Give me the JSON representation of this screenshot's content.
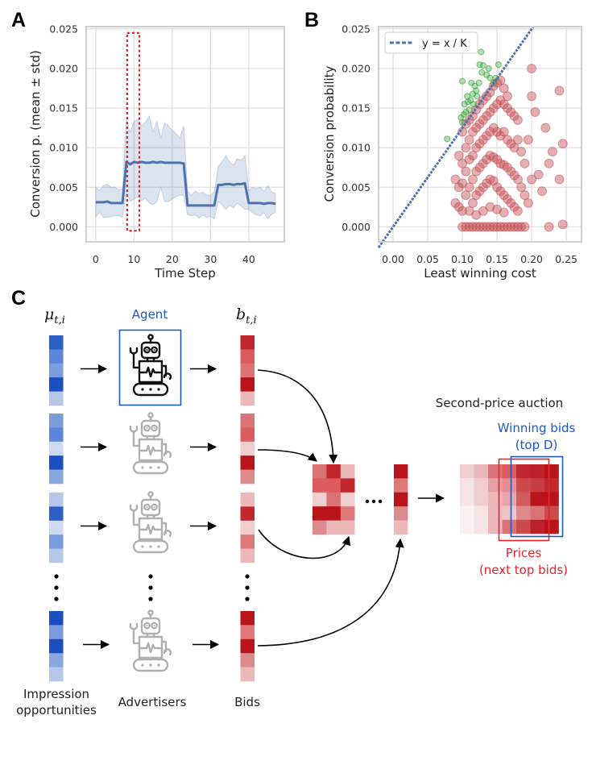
{
  "panel_labels": {
    "a": "A",
    "b": "B",
    "c": "C"
  },
  "chart_data": [
    {
      "type": "line",
      "panel": "A",
      "title": "",
      "xlabel": "Time Step",
      "ylabel": "Conversion p. (mean ± std)",
      "xlim": [
        -2.5,
        49.3
      ],
      "ylim": [
        -0.0019,
        0.0253
      ],
      "xticks": [
        0,
        10,
        20,
        30,
        40
      ],
      "xtick_labels": [
        "0",
        "10",
        "20",
        "30",
        "40"
      ],
      "yticks": [
        0,
        0.005,
        0.01,
        0.015,
        0.02,
        0.025
      ],
      "ytick_labels": [
        "0.000",
        "0.005",
        "0.010",
        "0.015",
        "0.020",
        "0.025"
      ],
      "grid": true,
      "colors": {
        "line": "#4c72b0",
        "band": "#4c72b0",
        "highlight": "#d62728"
      },
      "x": [
        0,
        1,
        2,
        3,
        4,
        5,
        6,
        7,
        8,
        9,
        10,
        11,
        12,
        13,
        14,
        15,
        16,
        17,
        18,
        19,
        20,
        21,
        22,
        23,
        24,
        25,
        26,
        27,
        28,
        29,
        30,
        31,
        32,
        33,
        34,
        35,
        36,
        37,
        38,
        39,
        40,
        41,
        42,
        43,
        44,
        45,
        46,
        47
      ],
      "series": [
        {
          "role": "mean",
          "values": [
            0.0031,
            0.0031,
            0.0031,
            0.0032,
            0.003,
            0.003,
            0.003,
            0.003,
            0.0082,
            0.0079,
            0.0082,
            0.0081,
            0.0082,
            0.0081,
            0.0081,
            0.0082,
            0.0081,
            0.0082,
            0.0081,
            0.0081,
            0.0081,
            0.0081,
            0.0081,
            0.008,
            0.0027,
            0.0027,
            0.0027,
            0.0027,
            0.0027,
            0.0027,
            0.0027,
            0.0027,
            0.0053,
            0.0053,
            0.0054,
            0.0054,
            0.0053,
            0.0054,
            0.0054,
            0.0055,
            0.003,
            0.003,
            0.003,
            0.003,
            0.0029,
            0.003,
            0.003,
            0.0029
          ]
        },
        {
          "role": "upper (mean + std)",
          "values": [
            0.005,
            0.0046,
            0.0052,
            0.0054,
            0.005,
            0.005,
            0.0047,
            0.0048,
            0.0134,
            0.012,
            0.0133,
            0.0136,
            0.0128,
            0.0132,
            0.014,
            0.012,
            0.0133,
            0.0112,
            0.0131,
            0.0128,
            0.0122,
            0.0118,
            0.0112,
            0.0128,
            0.0045,
            0.004,
            0.0045,
            0.0042,
            0.0044,
            0.004,
            0.004,
            0.0044,
            0.0076,
            0.0082,
            0.009,
            0.0082,
            0.0078,
            0.0086,
            0.0084,
            0.009,
            0.0046,
            0.005,
            0.0048,
            0.005,
            0.0045,
            0.0052,
            0.0044,
            0.0042
          ]
        },
        {
          "role": "lower (mean - std)",
          "values": [
            0.0012,
            0.0018,
            0.0012,
            0.0012,
            0.0013,
            0.0014,
            0.0014,
            0.0012,
            0.0045,
            0.0032,
            0.0035,
            0.0038,
            0.0033,
            0.0036,
            0.003,
            0.0028,
            0.0032,
            0.005,
            0.0032,
            0.0032,
            0.0035,
            0.0038,
            0.004,
            0.004,
            0.0015,
            0.0014,
            0.0015,
            0.0011,
            0.0015,
            0.0012,
            0.0013,
            0.001,
            0.0032,
            0.0028,
            0.0022,
            0.0027,
            0.0024,
            0.003,
            0.0026,
            0.0022,
            0.0022,
            0.0018,
            0.0015,
            0.0014,
            0.0018,
            0.001,
            0.0016,
            0.0018
          ]
        }
      ],
      "highlight_box": {
        "x": [
          8.2,
          11.4
        ],
        "y": [
          -0.0005,
          0.0245
        ],
        "style": "dotted"
      }
    },
    {
      "type": "scatter",
      "panel": "B",
      "title": "",
      "xlabel": "Least winning cost",
      "ylabel": "Conversion probability",
      "xlim": [
        -0.021,
        0.272
      ],
      "ylim": [
        -0.0019,
        0.0253
      ],
      "xticks": [
        0,
        0.05,
        0.1,
        0.15,
        0.2,
        0.25
      ],
      "xtick_labels": [
        "0.00",
        "0.05",
        "0.10",
        "0.15",
        "0.20",
        "0.25"
      ],
      "yticks": [
        0,
        0.005,
        0.01,
        0.015,
        0.02,
        0.025
      ],
      "ytick_labels": [
        "0.000",
        "0.005",
        "0.010",
        "0.015",
        "0.020",
        "0.025"
      ],
      "grid": true,
      "legend": {
        "position": "top-left",
        "entries": [
          {
            "label": "y = x / K",
            "style": "dashed",
            "color": "#4c72b0"
          }
        ]
      },
      "reference_line": {
        "label": "y = x / K",
        "K": 8,
        "color": "#4c72b0"
      },
      "colors": {
        "below_line": "#c44e52",
        "above_line": "#2ca02c"
      },
      "points_above_line": [
        [
          0.078,
          0.0111
        ],
        [
          0.1,
          0.0132
        ],
        [
          0.098,
          0.0138
        ],
        [
          0.105,
          0.0145
        ],
        [
          0.11,
          0.0148
        ],
        [
          0.103,
          0.0155
        ],
        [
          0.107,
          0.0165
        ],
        [
          0.112,
          0.016
        ],
        [
          0.115,
          0.0168
        ],
        [
          0.12,
          0.0172
        ],
        [
          0.118,
          0.0178
        ],
        [
          0.124,
          0.0182
        ],
        [
          0.128,
          0.0195
        ],
        [
          0.13,
          0.0204
        ],
        [
          0.125,
          0.0205
        ],
        [
          0.135,
          0.0192
        ],
        [
          0.14,
          0.0188
        ],
        [
          0.145,
          0.0182
        ],
        [
          0.138,
          0.02
        ],
        [
          0.148,
          0.0188
        ],
        [
          0.152,
          0.0205
        ],
        [
          0.1,
          0.0184
        ],
        [
          0.113,
          0.0182
        ],
        [
          0.127,
          0.0221
        ],
        [
          0.108,
          0.0158
        ],
        [
          0.116,
          0.0155
        ],
        [
          0.102,
          0.0142
        ],
        [
          0.121,
          0.0165
        ]
      ],
      "points_below_line": [
        [
          0.1,
          0.012
        ],
        [
          0.105,
          0.013
        ],
        [
          0.11,
          0.0135
        ],
        [
          0.115,
          0.014
        ],
        [
          0.12,
          0.0148
        ],
        [
          0.125,
          0.0155
        ],
        [
          0.13,
          0.016
        ],
        [
          0.135,
          0.0165
        ],
        [
          0.14,
          0.017
        ],
        [
          0.145,
          0.0178
        ],
        [
          0.15,
          0.0182
        ],
        [
          0.155,
          0.0185
        ],
        [
          0.16,
          0.0175
        ],
        [
          0.165,
          0.0165
        ],
        [
          0.095,
          0.009
        ],
        [
          0.1,
          0.008
        ],
        [
          0.105,
          0.01
        ],
        [
          0.11,
          0.011
        ],
        [
          0.115,
          0.012
        ],
        [
          0.12,
          0.0125
        ],
        [
          0.125,
          0.013
        ],
        [
          0.13,
          0.0135
        ],
        [
          0.135,
          0.014
        ],
        [
          0.14,
          0.0145
        ],
        [
          0.145,
          0.015
        ],
        [
          0.15,
          0.0155
        ],
        [
          0.155,
          0.016
        ],
        [
          0.16,
          0.0155
        ],
        [
          0.165,
          0.015
        ],
        [
          0.17,
          0.0145
        ],
        [
          0.175,
          0.014
        ],
        [
          0.18,
          0.0135
        ],
        [
          0.09,
          0.006
        ],
        [
          0.095,
          0.005
        ],
        [
          0.1,
          0.0055
        ],
        [
          0.105,
          0.007
        ],
        [
          0.11,
          0.0085
        ],
        [
          0.115,
          0.009
        ],
        [
          0.12,
          0.01
        ],
        [
          0.125,
          0.0105
        ],
        [
          0.13,
          0.011
        ],
        [
          0.135,
          0.0115
        ],
        [
          0.14,
          0.012
        ],
        [
          0.145,
          0.0125
        ],
        [
          0.15,
          0.012
        ],
        [
          0.155,
          0.0115
        ],
        [
          0.16,
          0.012
        ],
        [
          0.165,
          0.011
        ],
        [
          0.17,
          0.0105
        ],
        [
          0.175,
          0.01
        ],
        [
          0.18,
          0.011
        ],
        [
          0.185,
          0.0095
        ],
        [
          0.09,
          0.003
        ],
        [
          0.095,
          0.0025
        ],
        [
          0.1,
          0.002
        ],
        [
          0.105,
          0.004
        ],
        [
          0.11,
          0.005
        ],
        [
          0.115,
          0.006
        ],
        [
          0.12,
          0.007
        ],
        [
          0.125,
          0.0075
        ],
        [
          0.13,
          0.008
        ],
        [
          0.135,
          0.0085
        ],
        [
          0.14,
          0.009
        ],
        [
          0.145,
          0.0088
        ],
        [
          0.15,
          0.0085
        ],
        [
          0.155,
          0.008
        ],
        [
          0.16,
          0.0078
        ],
        [
          0.165,
          0.0075
        ],
        [
          0.17,
          0.007
        ],
        [
          0.175,
          0.0065
        ],
        [
          0.18,
          0.006
        ],
        [
          0.185,
          0.005
        ],
        [
          0.19,
          0.004
        ],
        [
          0.11,
          0.002
        ],
        [
          0.115,
          0.003
        ],
        [
          0.12,
          0.004
        ],
        [
          0.125,
          0.0045
        ],
        [
          0.13,
          0.005
        ],
        [
          0.135,
          0.0055
        ],
        [
          0.14,
          0.006
        ],
        [
          0.145,
          0.0058
        ],
        [
          0.15,
          0.005
        ],
        [
          0.155,
          0.0045
        ],
        [
          0.16,
          0.004
        ],
        [
          0.165,
          0.0035
        ],
        [
          0.17,
          0.003
        ],
        [
          0.175,
          0.0025
        ],
        [
          0.18,
          0.002
        ],
        [
          0.12,
          0.0015
        ],
        [
          0.13,
          0.002
        ],
        [
          0.14,
          0.0025
        ],
        [
          0.15,
          0.0022
        ],
        [
          0.16,
          0.0018
        ],
        [
          0.1,
          0
        ],
        [
          0.105,
          0
        ],
        [
          0.11,
          0
        ],
        [
          0.115,
          0
        ],
        [
          0.12,
          0
        ],
        [
          0.125,
          0
        ],
        [
          0.13,
          0
        ],
        [
          0.135,
          0
        ],
        [
          0.14,
          0
        ],
        [
          0.145,
          0
        ],
        [
          0.15,
          0
        ],
        [
          0.155,
          0
        ],
        [
          0.16,
          0
        ],
        [
          0.165,
          0
        ],
        [
          0.17,
          0
        ],
        [
          0.175,
          0
        ],
        [
          0.18,
          0
        ],
        [
          0.185,
          0
        ],
        [
          0.19,
          0
        ],
        [
          0.2,
          0.02
        ],
        [
          0.24,
          0.0172
        ],
        [
          0.245,
          0.0105
        ],
        [
          0.23,
          0.0095
        ],
        [
          0.225,
          0.008
        ],
        [
          0.24,
          0.006
        ],
        [
          0.245,
          0.0003
        ],
        [
          0.225,
          0.0
        ],
        [
          0.215,
          0.0045
        ],
        [
          0.21,
          0.0066
        ],
        [
          0.2,
          0.0165
        ],
        [
          0.205,
          0.0145
        ],
        [
          0.22,
          0.0125
        ],
        [
          0.195,
          0.011
        ],
        [
          0.19,
          0.008
        ],
        [
          0.2,
          0.006
        ],
        [
          0.195,
          0.003
        ]
      ]
    }
  ],
  "diagram": {
    "mu_label": {
      "base": "μ",
      "sub": "t,i"
    },
    "b_label": {
      "base": "b",
      "sub": "t,i"
    },
    "agent_label": "Agent",
    "auction_title": "Second-price auction",
    "winning_label_1": "Winning bids",
    "winning_label_2": "(top D)",
    "prices_label_1": "Prices",
    "prices_label_2": "(next top bids)",
    "footer": {
      "impressions_1": "Impression",
      "impressions_2": "opportunities",
      "advertisers": "Advertisers",
      "bids": "Bids"
    },
    "ellipsis": "…",
    "colors": {
      "agent": "#1f57c3",
      "winning": "#1f57c3",
      "prices": "#e8242a",
      "robot_agent": "#111111",
      "robot_other": "#b0b0b0"
    },
    "impression_strips": [
      [
        "#2a5fc4",
        "#5b86db",
        "#7a9ddb",
        "#1a4fbf",
        "#b6c7ea"
      ],
      [
        "#7a9ad8",
        "#5b86db",
        "#cdd8f1",
        "#1a4fbf",
        "#8aa6de"
      ],
      [
        "#b6c7ea",
        "#2a5fc4",
        "#cdd8f1",
        "#7a9be0",
        "#b6c7ea"
      ],
      [
        "#1a4fbf",
        "#7a9be0",
        "#1a4fbf",
        "#8aa6de",
        "#b6c7ea"
      ]
    ],
    "bid_strips": [
      [
        "#c1272d",
        "#dc5b5e",
        "#d97376",
        "#b81419",
        "#edb8ba"
      ],
      [
        "#d97376",
        "#dc5b5e",
        "#f0cdce",
        "#b81419",
        "#dd8a8c"
      ],
      [
        "#edb8ba",
        "#c1272d",
        "#f0cdce",
        "#e07779",
        "#edb8ba"
      ],
      [
        "#b81419",
        "#e07779",
        "#b81419",
        "#dd8a8c",
        "#edb8ba"
      ]
    ],
    "bid_matrix": [
      [
        "#d97376",
        "#c1272d",
        "#edb8ba"
      ],
      [
        "#dc5b5e",
        "#dc5b5e",
        "#c1272d"
      ],
      [
        "#f0cdce",
        "#d97376",
        "#f0cdce"
      ],
      [
        "#b81419",
        "#b81419",
        "#e07779"
      ],
      [
        "#dd8a8c",
        "#edb8ba",
        "#edb8ba"
      ]
    ],
    "bid_column": [
      "#b81419",
      "#e07779",
      "#b81419",
      "#dd8a8c",
      "#edb8ba"
    ],
    "sorted_matrix": [
      [
        "#f0cdce",
        "#ecb7b9",
        "#d97376",
        "#dc5b5e",
        "#c1272d",
        "#be2027",
        "#b81419"
      ],
      [
        "#f6e4e5",
        "#f0cdce",
        "#e3a1a3",
        "#e68f92",
        "#cc4a4e",
        "#c63c41",
        "#c1272d"
      ],
      [
        "#f6e4e5",
        "#f0cdce",
        "#ecb7b9",
        "#e9a5a7",
        "#d05a5e",
        "#b81419",
        "#b81419"
      ],
      [
        "#fbf0f0",
        "#f6e4e5",
        "#ecb7b9",
        "#f0c4c5",
        "#dd8a8c",
        "#d97376",
        "#cc4a4e"
      ],
      [
        "#fbf0f0",
        "#f6e4e5",
        "#ecb7b9",
        "#d97376",
        "#cc4a4e",
        "#be2027",
        "#b81419"
      ]
    ]
  }
}
